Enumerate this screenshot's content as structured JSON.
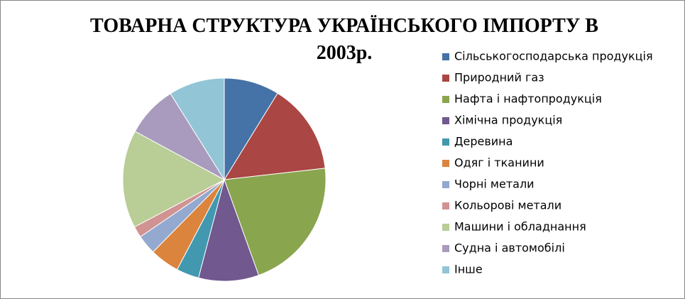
{
  "chart_data": {
    "type": "pie",
    "title": "ТОВАРНА СТРУКТУРА УКРАЇНСЬКОГО ІМПОРТУ В 2003р.",
    "categories": [
      "Сільськогосподарська продукція",
      "Природний газ",
      "Нафта і нафтопродукція",
      "Хімічна продукція",
      "Деревина",
      "Одяг і тканини",
      "Чорні метали",
      "Кольорові метали",
      "Машини і обладнання",
      "Судна і автомобілі",
      "Інше"
    ],
    "values": [
      8.8,
      14.4,
      21.3,
      9.6,
      3.6,
      4.7,
      3.1,
      1.8,
      15.6,
      8.2,
      8.9
    ],
    "colors": [
      "#4572a7",
      "#aa4643",
      "#89a54e",
      "#71588f",
      "#4198af",
      "#db843d",
      "#93a9cf",
      "#d19392",
      "#b9cd96",
      "#a99bbd",
      "#92c5d6"
    ]
  }
}
